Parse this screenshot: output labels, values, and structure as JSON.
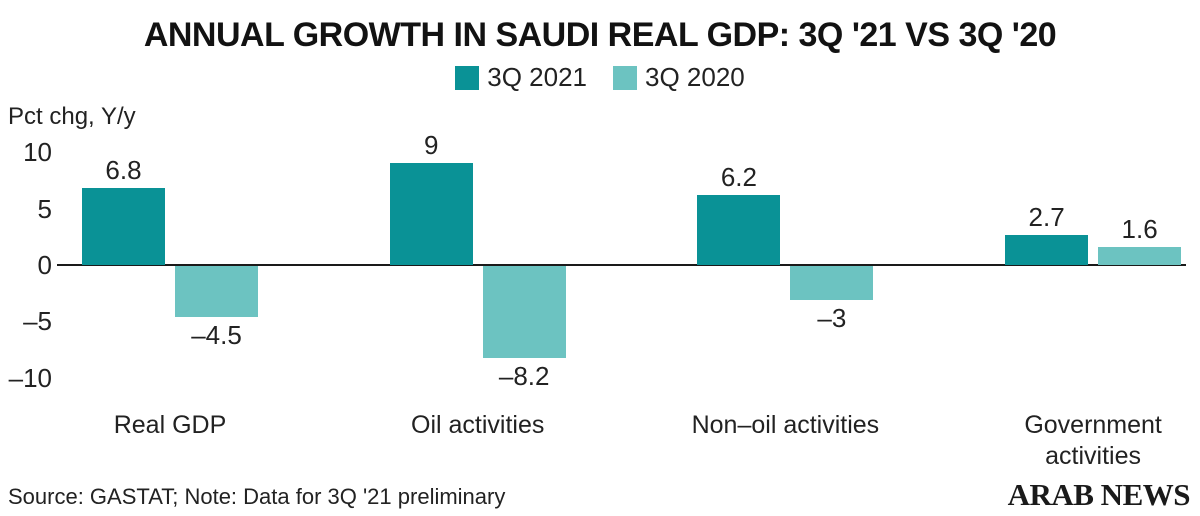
{
  "title": "ANNUAL GROWTH IN SAUDI REAL GDP: 3Q '21 VS 3Q '20",
  "axis_label": "Pct chg, Y/y",
  "footer": {
    "source": "Source: GASTAT; Note: Data for 3Q '21 preliminary",
    "logo": "ARAB NEWS"
  },
  "colors": {
    "series_2021": "#0a9296",
    "series_2020": "#6cc3c1",
    "axis": "#1a1a1a"
  },
  "chart_data": {
    "type": "bar",
    "title": "ANNUAL GROWTH IN SAUDI REAL GDP: 3Q '21 VS 3Q '20",
    "ylabel": "Pct chg, Y/y",
    "xlabel": "",
    "categories": [
      "Real GDP",
      "Oil activities",
      "Non–oil activities",
      "Government activities"
    ],
    "series": [
      {
        "name": "3Q 2021",
        "color": "#0a9296",
        "values": [
          6.8,
          9,
          6.2,
          2.7
        ],
        "value_labels": [
          "6.8",
          "9",
          "6.2",
          "2.7"
        ]
      },
      {
        "name": "3Q 2020",
        "color": "#6cc3c1",
        "values": [
          -4.5,
          -8.2,
          -3,
          1.6
        ],
        "value_labels": [
          "–4.5",
          "–8.2",
          "–3",
          "1.6"
        ]
      }
    ],
    "yticks": {
      "values": [
        10,
        5,
        0,
        -5,
        -10
      ],
      "labels": [
        "10",
        "5",
        "0",
        "–5",
        "–10"
      ]
    },
    "ylim": [
      -10,
      10
    ],
    "grid": false,
    "legend_position": "top-center"
  }
}
